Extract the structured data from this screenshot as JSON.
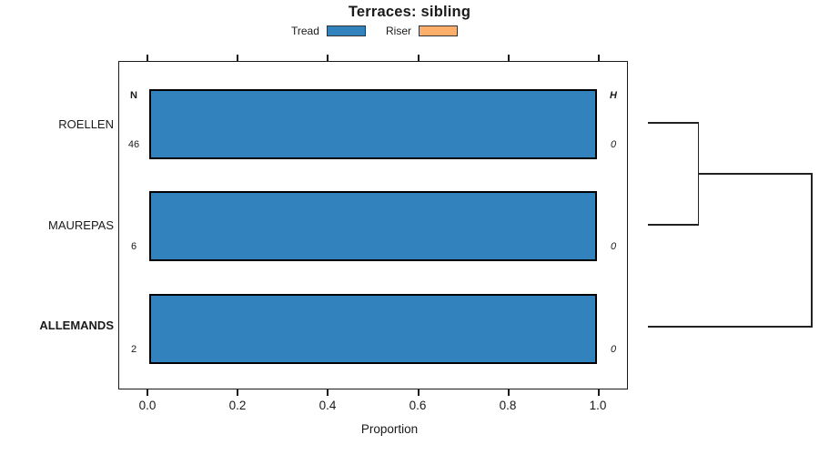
{
  "labels": {
    "n_header": "N",
    "h_header": "H"
  },
  "chart_data": {
    "type": "bar",
    "orientation": "horizontal",
    "title": "Terraces: sibling",
    "xlabel": "Proportion",
    "categories": [
      "ROELLEN",
      "MAUREPAS",
      "ALLEMANDS"
    ],
    "highlighted_category": "ALLEMANDS",
    "series": [
      {
        "name": "Tread",
        "color": "#3182bd",
        "values": [
          1.0,
          1.0,
          1.0
        ]
      },
      {
        "name": "Riser",
        "color": "#fdae6b",
        "values": [
          0.0,
          0.0,
          0.0
        ]
      }
    ],
    "n_values": [
      "46",
      "6",
      "2"
    ],
    "h_values": [
      "0",
      "0",
      "0"
    ],
    "x_ticks": [
      "0.0",
      "0.2",
      "0.4",
      "0.6",
      "0.8",
      "1.0"
    ],
    "x_tick_values": [
      0.0,
      0.2,
      0.4,
      0.6,
      0.8,
      1.0
    ],
    "xlim": [
      0,
      1.07
    ],
    "grid": false,
    "legend_position": "top",
    "dendrogram": {
      "side": "right",
      "leaves": [
        "ROELLEN",
        "MAUREPAS",
        "ALLEMANDS"
      ],
      "merges": [
        {
          "members": [
            "ROELLEN",
            "MAUREPAS"
          ],
          "order": 1
        },
        {
          "members": [
            "ROELLEN+MAUREPAS",
            "ALLEMANDS"
          ],
          "order": 2
        }
      ]
    }
  }
}
